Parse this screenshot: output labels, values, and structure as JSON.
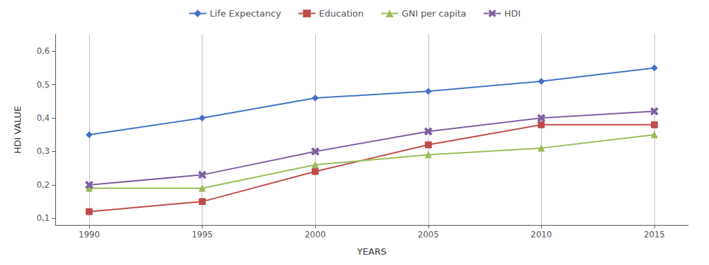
{
  "chart_data": {
    "type": "line",
    "xlabel": "YEARS",
    "ylabel": "HDI VALUE",
    "x": [
      1990,
      1995,
      2000,
      2005,
      2010,
      2015
    ],
    "series": [
      {
        "name": "Life Expectancy",
        "color": "#4472C4",
        "marker": "diamond",
        "values": [
          0.35,
          0.4,
          0.46,
          0.48,
          0.51,
          0.55
        ]
      },
      {
        "name": "Education",
        "color": "#BE4B48",
        "marker": "square",
        "values": [
          0.12,
          0.15,
          0.24,
          0.32,
          0.38,
          0.38
        ]
      },
      {
        "name": "GNI per capita",
        "color": "#9BBB59",
        "marker": "triangle",
        "values": [
          0.19,
          0.19,
          0.26,
          0.29,
          0.31,
          0.35
        ]
      },
      {
        "name": "HDI",
        "color": "#7D5FA0",
        "marker": "x",
        "values": [
          0.2,
          0.23,
          0.3,
          0.36,
          0.4,
          0.42
        ]
      }
    ],
    "xlim": [
      1988.5,
      2016.5
    ],
    "xticks": [
      1990,
      1995,
      2000,
      2005,
      2010,
      2015
    ],
    "ylim": [
      0.08,
      0.65
    ],
    "yticks": [
      {
        "value": 0.1,
        "label": "0,1"
      },
      {
        "value": 0.2,
        "label": "0,2"
      },
      {
        "value": 0.3,
        "label": "0,3"
      },
      {
        "value": 0.4,
        "label": "0,4"
      },
      {
        "value": 0.5,
        "label": "0,5"
      },
      {
        "value": 0.6,
        "label": "0,6"
      }
    ],
    "grid": "x",
    "legend": "top"
  }
}
